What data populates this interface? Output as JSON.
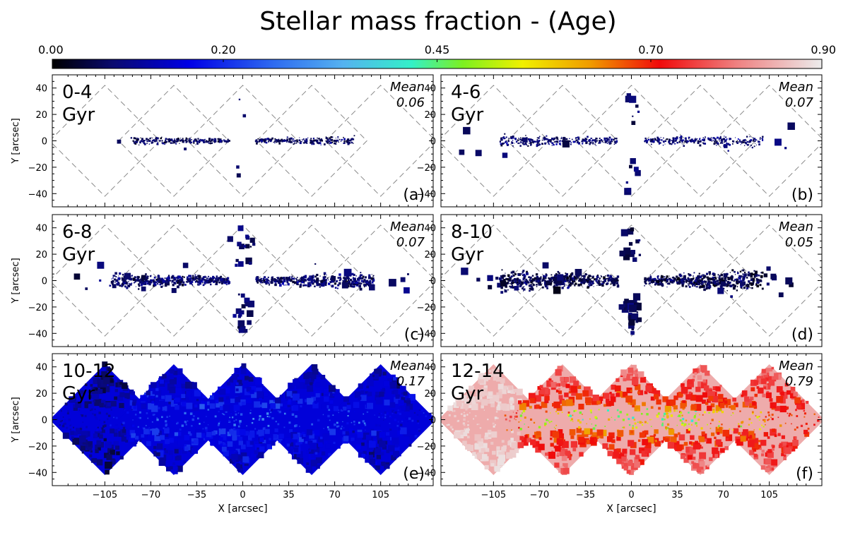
{
  "chart_data": {
    "type": "heatmap",
    "title": "Stellar mass fraction - (Age)",
    "colorbar": {
      "ticks": [
        "0.00",
        "0.20",
        "0.45",
        "0.70",
        "0.90"
      ],
      "tick_values": [
        0.0,
        0.2,
        0.45,
        0.7,
        0.9
      ],
      "range": [
        0.0,
        0.9
      ],
      "colormap_stops": [
        {
          "v": 0.0,
          "color": "#000000"
        },
        {
          "v": 0.07,
          "color": "#0a0a6e"
        },
        {
          "v": 0.16,
          "color": "#0000e6"
        },
        {
          "v": 0.26,
          "color": "#2f6cf0"
        },
        {
          "v": 0.34,
          "color": "#55b2f0"
        },
        {
          "v": 0.42,
          "color": "#33f0c8"
        },
        {
          "v": 0.48,
          "color": "#7cf020"
        },
        {
          "v": 0.55,
          "color": "#f0f000"
        },
        {
          "v": 0.63,
          "color": "#f09a00"
        },
        {
          "v": 0.71,
          "color": "#f00a0a"
        },
        {
          "v": 0.8,
          "color": "#ef8080"
        },
        {
          "v": 0.9,
          "color": "#ececec"
        }
      ]
    },
    "xlabel": "X [arcsec]",
    "ylabel": "Y [arcsec]",
    "xlim": [
      -145,
      145
    ],
    "ylim": [
      -50,
      50
    ],
    "xticks": [
      "−105",
      "−70",
      "−35",
      "0",
      "35",
      "70",
      "105"
    ],
    "xtick_values": [
      -105,
      -70,
      -35,
      0,
      35,
      70,
      105
    ],
    "yticks": [
      "40",
      "20",
      "0",
      "−20",
      "−40"
    ],
    "ytick_values": [
      40,
      20,
      0,
      -20,
      -40
    ],
    "footprint_centers": [
      -105,
      -52.5,
      0,
      52.5,
      105
    ],
    "footprint_half_width": 42,
    "mean_label": "Mean",
    "panels": [
      {
        "id": "a",
        "label": "(a)",
        "age_range": "0-4",
        "unit": "Gyr",
        "mean": "0.06",
        "mean_value": 0.06
      },
      {
        "id": "b",
        "label": "(b)",
        "age_range": "4-6",
        "unit": "Gyr",
        "mean": "0.07",
        "mean_value": 0.07
      },
      {
        "id": "c",
        "label": "(c)",
        "age_range": "6-8",
        "unit": "Gyr",
        "mean": "0.07",
        "mean_value": 0.07
      },
      {
        "id": "d",
        "label": "(d)",
        "age_range": "8-10",
        "unit": "Gyr",
        "mean": "0.05",
        "mean_value": 0.05
      },
      {
        "id": "e",
        "label": "(e)",
        "age_range": "10-12",
        "unit": "Gyr",
        "mean": "0.17",
        "mean_value": 0.17
      },
      {
        "id": "f",
        "label": "(f)",
        "age_range": "12-14",
        "unit": "Gyr",
        "mean": "0.79",
        "mean_value": 0.79
      }
    ]
  }
}
